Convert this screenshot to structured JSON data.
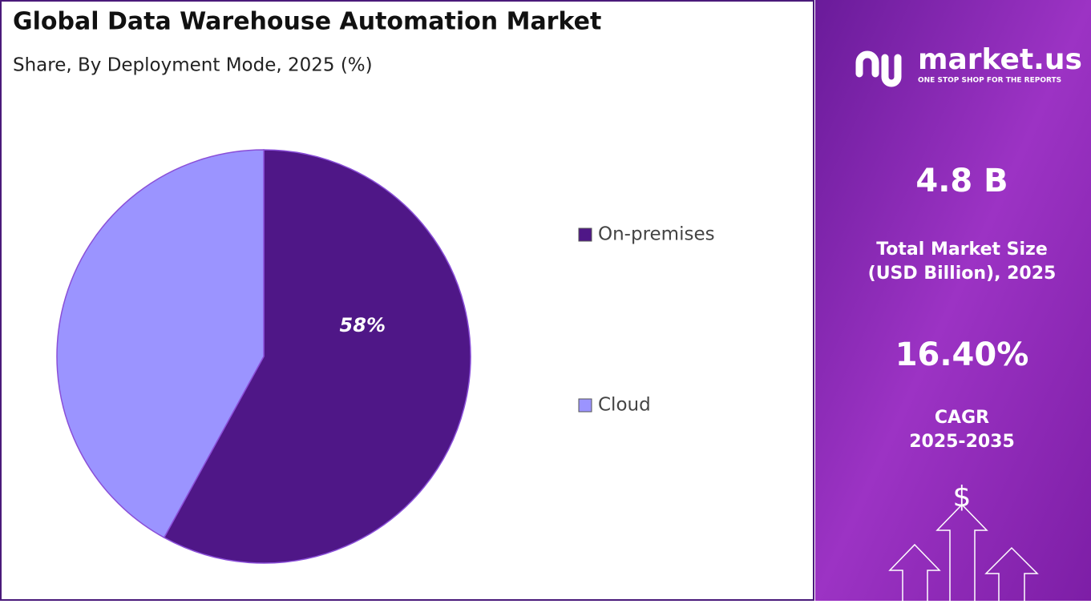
{
  "chart_data": {
    "type": "pie",
    "title": "Global Data Warehouse Automation Market",
    "subtitle": "Share, By Deployment Mode, 2025 (%)",
    "categories": [
      "On-premises",
      "Cloud"
    ],
    "values": [
      58,
      42
    ],
    "value_labels": [
      "58%",
      null
    ],
    "colors": [
      "#4f1787",
      "#9b94ff"
    ],
    "legend": "right"
  },
  "panel": {
    "logo": "market.us",
    "tagline": "ONE STOP SHOP FOR THE REPORTS",
    "market_size": "4.8 B",
    "market_size_label": [
      "Total Market Size",
      "(USD Billion), 2025"
    ],
    "cagr": "16.40%",
    "cagr_label": [
      "CAGR",
      "2025-2035"
    ]
  }
}
